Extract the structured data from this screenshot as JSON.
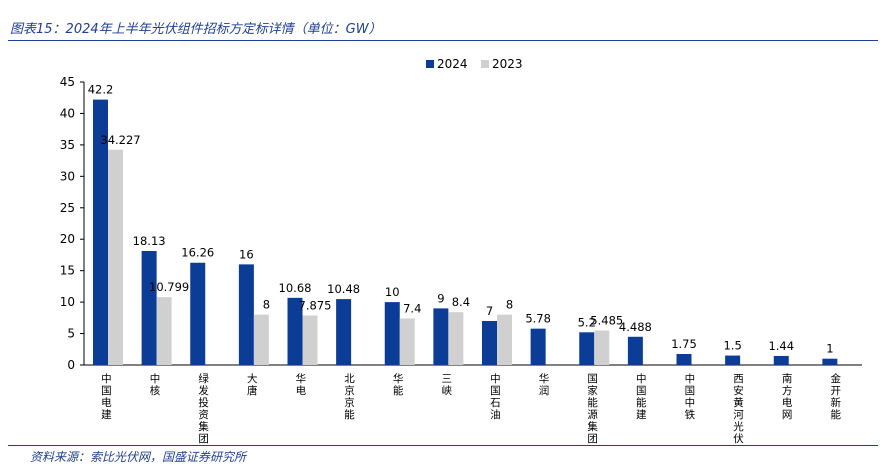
{
  "header": {
    "title": "图表15：2024年上半年光伏组件招标方定标详情（单位：GW）"
  },
  "footer": {
    "source": "资料来源：索比光伏网，国盛证券研究所"
  },
  "colors": {
    "series_2024": "#0b3c96",
    "series_2023": "#d0d0d0",
    "accent": "#1f3f8f"
  },
  "chart_data": {
    "type": "bar",
    "categories": [
      "中国电建",
      "中核",
      "绿发投资集团",
      "大唐",
      "华电",
      "北京京能",
      "华能",
      "三峡",
      "中国石油",
      "华润",
      "国家能源集团",
      "中国能建",
      "中国中铁",
      "西安黄河光伏",
      "南方电网",
      "金开新能"
    ],
    "series": [
      {
        "name": "2024",
        "values": [
          42.2,
          18.13,
          16.26,
          16,
          10.68,
          10.48,
          10,
          9,
          7,
          5.78,
          5.2,
          4.488,
          1.75,
          1.5,
          1.44,
          1
        ],
        "labels": [
          "42.2",
          "18.13",
          "16.26",
          "16",
          "10.68",
          "10.48",
          "10",
          "9",
          "7",
          "5.78",
          "5.2",
          "4.488",
          "1.75",
          "1.5",
          "1.44",
          "1"
        ]
      },
      {
        "name": "2023",
        "values": [
          34.227,
          10.799,
          null,
          8,
          7.875,
          null,
          7.4,
          8.4,
          8,
          null,
          5.485,
          null,
          null,
          null,
          null,
          null
        ],
        "labels": [
          "34.227",
          "10.799",
          null,
          "8",
          "7.875",
          null,
          "7.4",
          "8.4",
          "8",
          null,
          "5.485",
          null,
          null,
          null,
          null,
          null
        ]
      }
    ],
    "ylim": [
      0,
      45
    ],
    "yticks": [
      0,
      5,
      10,
      15,
      20,
      25,
      30,
      35,
      40,
      45
    ],
    "grid": false,
    "legend": "top-center"
  }
}
